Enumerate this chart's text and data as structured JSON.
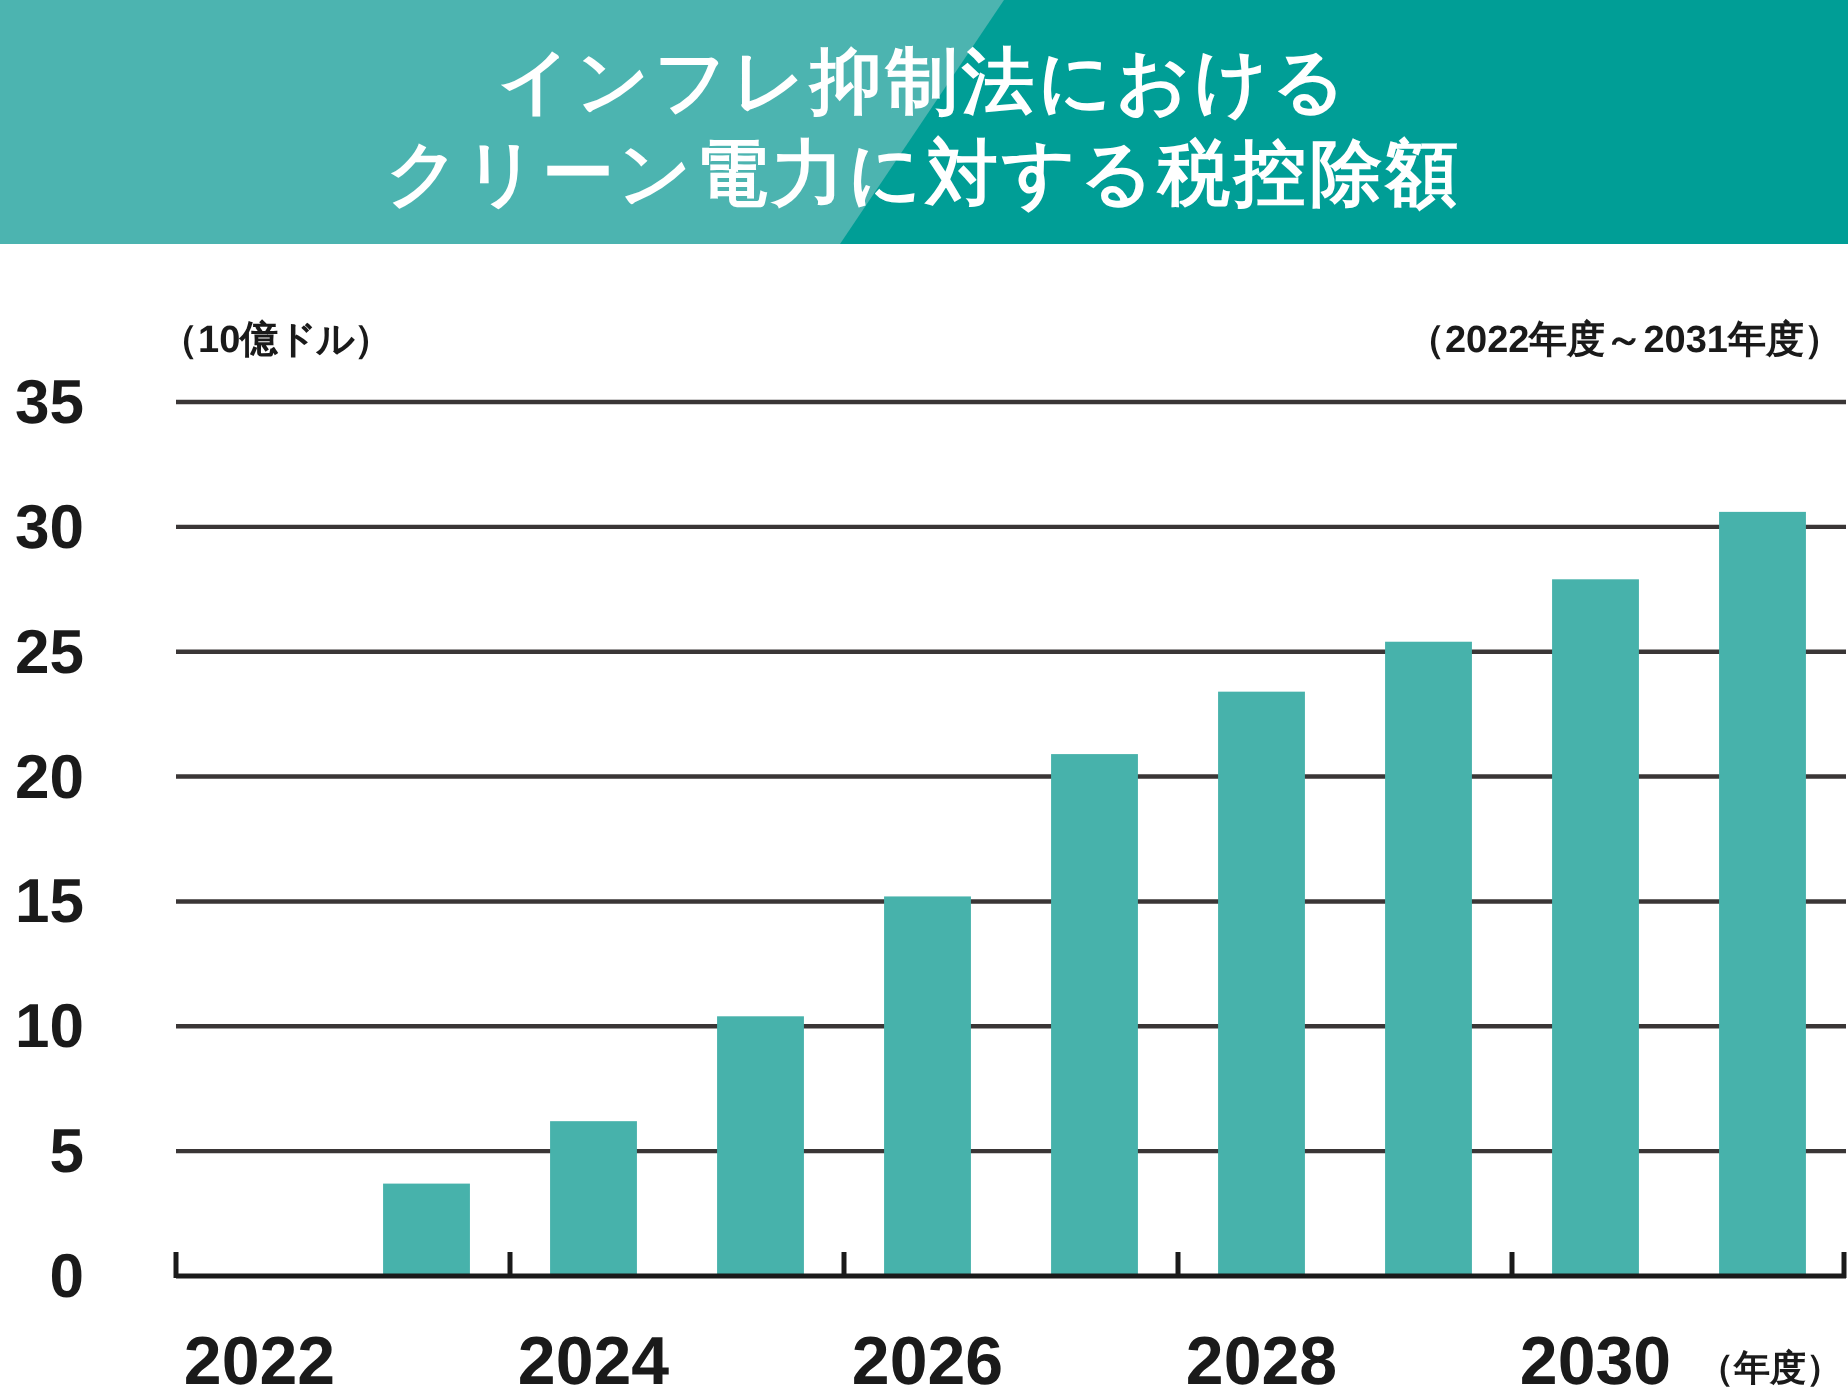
{
  "chart_data": {
    "type": "bar",
    "title": "インフレ抑制法におけるクリーン電力に対する税控除額",
    "subtitle": "（2022年度～2031年度）",
    "ylabel": "（10億ドル）",
    "xlabel": "（年度）",
    "categories": [
      "2022",
      null,
      "2024",
      null,
      "2026",
      null,
      "2028",
      null,
      "2030",
      null
    ],
    "values": [
      null,
      3.7,
      6.2,
      10.4,
      15.2,
      20.9,
      23.4,
      25.4,
      27.9,
      30.6
    ],
    "color": "#47b2ab",
    "ylim": [
      0,
      35
    ],
    "yticks": [
      0,
      5,
      10,
      15,
      20,
      25,
      30,
      35
    ],
    "grid": "y"
  }
}
